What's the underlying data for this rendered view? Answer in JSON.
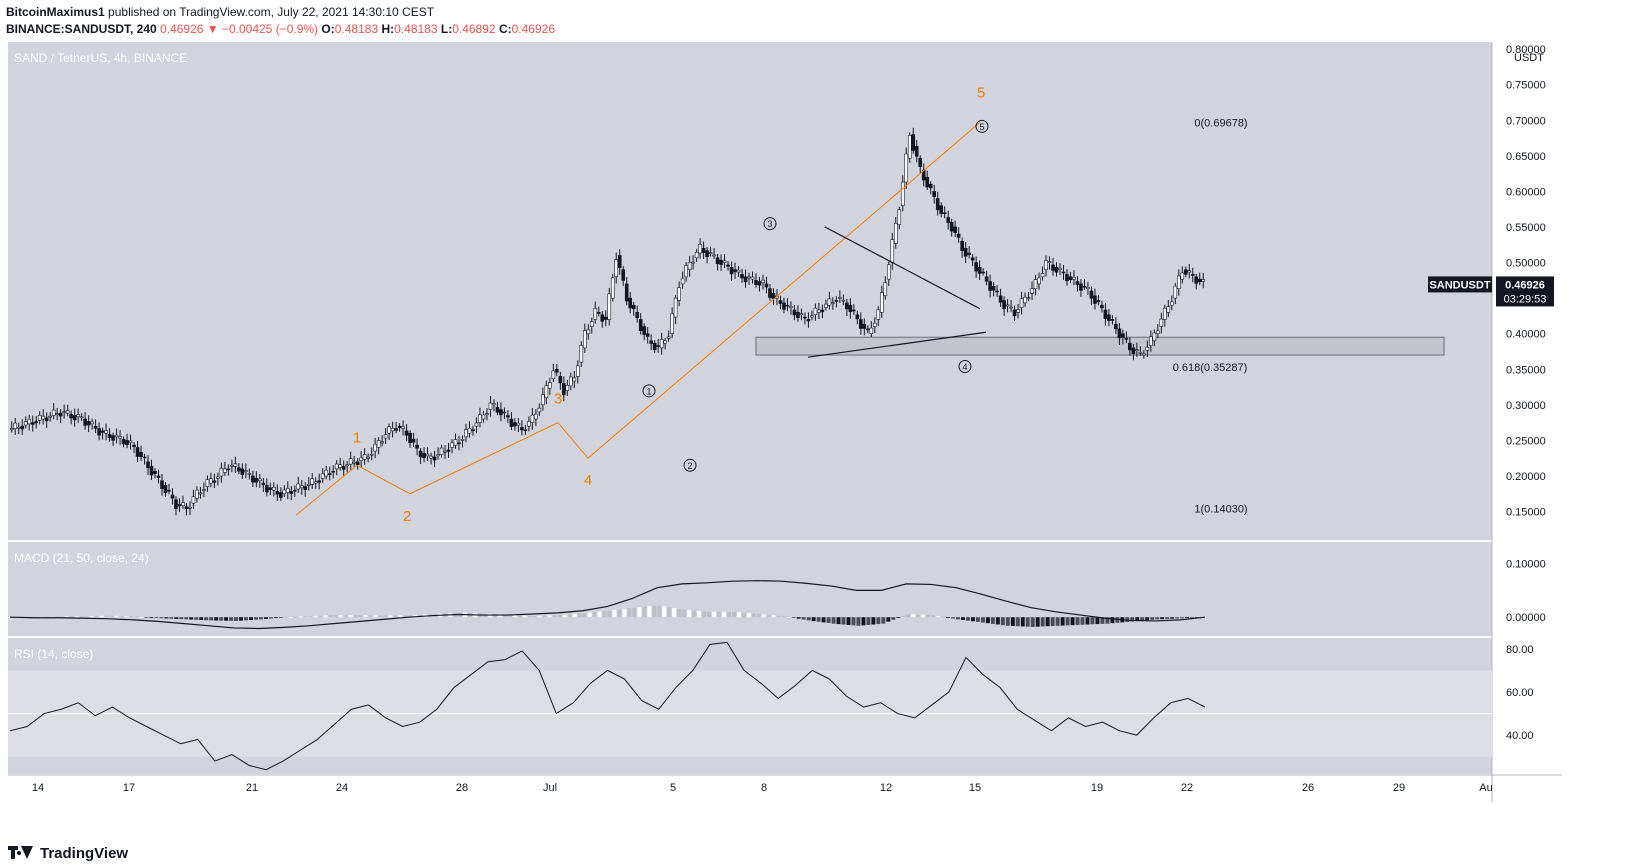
{
  "header": {
    "author": "BitcoinMaximus1",
    "published": "published on TradingView.com, July 22, 2021 14:30:10 CEST",
    "symbol_line": "BINANCE:SANDUSDT, 240",
    "change": "0.46926 ▼ −0.00425 (−0.9%)",
    "o_label": "O:",
    "o_value": "0.48183",
    "h_label": "H:",
    "h_value": "0.48183",
    "l_label": "L:",
    "l_value": "0.46892",
    "c_label": "C:",
    "c_value": "0.46926"
  },
  "footer": {
    "logo_text": "TradingView"
  },
  "colors": {
    "bg_panel": "#d1d4dc",
    "orange": "#f57c00",
    "bear": "#131722",
    "bull": "#ffffff",
    "price_tag": "#131722"
  },
  "chart_data": [
    {
      "type": "candlestick",
      "title": "SAND / TetherUS, 4h, BINANCE",
      "y_unit": "USDT",
      "ylim": [
        0.11,
        0.81
      ],
      "yticks": [
        "0.80000",
        "0.75000",
        "0.70000",
        "0.65000",
        "0.60000",
        "0.55000",
        "0.50000",
        "0.45000",
        "0.40000",
        "0.35000",
        "0.30000",
        "0.25000",
        "0.20000",
        "0.15000"
      ],
      "x_tick_labels": [
        "14",
        "17",
        "21",
        "24",
        "28",
        "Jul",
        "5",
        "8",
        "12",
        "15",
        "19",
        "22",
        "26",
        "29",
        "Au"
      ],
      "last_price": {
        "symbol": "SANDUSDT",
        "value": "0.46926",
        "countdown": "03:29:53"
      },
      "fib_levels": [
        {
          "label": "0(0.69678)",
          "value": 0.69678
        },
        {
          "label": "0.618(0.35287)",
          "value": 0.35287
        },
        {
          "label": "1(0.14030)",
          "value": 0.1403
        }
      ],
      "support_zone": [
        0.37,
        0.395
      ],
      "orange_waves": [
        {
          "label": "1",
          "value": 0.215
        },
        {
          "label": "2",
          "value": 0.175
        },
        {
          "label": "3",
          "value": 0.275
        },
        {
          "label": "4",
          "value": 0.225
        },
        {
          "label": "5",
          "value": 0.697
        }
      ],
      "circled_waves": [
        {
          "label": "1",
          "value": 0.3
        },
        {
          "label": "2",
          "value": 0.26
        },
        {
          "label": "3",
          "value": 0.535
        },
        {
          "label": "4",
          "value": 0.382
        },
        {
          "label": "5",
          "value": 0.697
        }
      ],
      "close_path": [
        0.265,
        0.27,
        0.275,
        0.28,
        0.285,
        0.29,
        0.285,
        0.28,
        0.27,
        0.26,
        0.255,
        0.25,
        0.24,
        0.22,
        0.2,
        0.18,
        0.16,
        0.155,
        0.175,
        0.19,
        0.2,
        0.215,
        0.21,
        0.2,
        0.19,
        0.18,
        0.175,
        0.18,
        0.185,
        0.19,
        0.2,
        0.21,
        0.215,
        0.22,
        0.225,
        0.24,
        0.26,
        0.27,
        0.26,
        0.235,
        0.225,
        0.23,
        0.24,
        0.25,
        0.265,
        0.28,
        0.3,
        0.29,
        0.275,
        0.265,
        0.28,
        0.31,
        0.35,
        0.32,
        0.34,
        0.4,
        0.43,
        0.42,
        0.51,
        0.45,
        0.42,
        0.39,
        0.38,
        0.4,
        0.47,
        0.5,
        0.52,
        0.51,
        0.5,
        0.49,
        0.48,
        0.475,
        0.47,
        0.45,
        0.44,
        0.43,
        0.42,
        0.43,
        0.44,
        0.45,
        0.44,
        0.42,
        0.4,
        0.43,
        0.5,
        0.58,
        0.68,
        0.63,
        0.6,
        0.57,
        0.55,
        0.52,
        0.5,
        0.48,
        0.46,
        0.44,
        0.43,
        0.45,
        0.47,
        0.5,
        0.49,
        0.48,
        0.47,
        0.46,
        0.44,
        0.42,
        0.4,
        0.38,
        0.37,
        0.39,
        0.42,
        0.45,
        0.49,
        0.48,
        0.47
      ]
    },
    {
      "type": "histogram",
      "title": "MACD (21, 50, close, 24)",
      "yticks": [
        "0.10000",
        "0.00000"
      ],
      "ylim": [
        -0.035,
        0.14
      ],
      "macd_line": [
        0,
        -0.001,
        -0.001,
        -0.002,
        -0.003,
        -0.005,
        -0.008,
        -0.012,
        -0.016,
        -0.02,
        -0.021,
        -0.019,
        -0.016,
        -0.012,
        -0.008,
        -0.004,
        0,
        0.003,
        0.005,
        0.004,
        0.004,
        0.006,
        0.008,
        0.012,
        0.02,
        0.035,
        0.055,
        0.062,
        0.064,
        0.067,
        0.068,
        0.067,
        0.063,
        0.058,
        0.05,
        0.05,
        0.062,
        0.061,
        0.055,
        0.043,
        0.03,
        0.018,
        0.01,
        0.004,
        -0.002,
        -0.006,
        -0.007,
        -0.005,
        0
      ],
      "histogram": [
        0,
        0,
        0.001,
        0.002,
        0.003,
        0.001,
        -0.002,
        -0.004,
        -0.006,
        -0.007,
        -0.004,
        0,
        0.002,
        0.004,
        0.004,
        0.003,
        0.004,
        0.006,
        0.009,
        0.007,
        0.004,
        0.002,
        0.004,
        0.008,
        0.012,
        0.018,
        0.022,
        0.014,
        0.01,
        0.01,
        0.006,
        0.002,
        -0.006,
        -0.012,
        -0.016,
        -0.012,
        0.006,
        0.004,
        -0.004,
        -0.01,
        -0.016,
        -0.018,
        -0.016,
        -0.014,
        -0.012,
        -0.008,
        -0.004,
        -0.002,
        0
      ]
    },
    {
      "type": "line",
      "title": "RSI (14, close)",
      "yticks": [
        "80.00",
        "60.00",
        "40.00"
      ],
      "ylim": [
        22,
        85
      ],
      "band": [
        30,
        70
      ],
      "midline": 50,
      "values": [
        42,
        44,
        50,
        52,
        55,
        49,
        53,
        48,
        44,
        40,
        36,
        38,
        28,
        31,
        26,
        24,
        28,
        33,
        38,
        45,
        52,
        54,
        48,
        44,
        46,
        52,
        62,
        68,
        74,
        75,
        79,
        70,
        50,
        55,
        64,
        70,
        66,
        56,
        52,
        62,
        70,
        82,
        83,
        70,
        64,
        57,
        63,
        70,
        66,
        58,
        53,
        55,
        50,
        48,
        54,
        60,
        76,
        68,
        62,
        52,
        47,
        42,
        48,
        44,
        46,
        42,
        40,
        48,
        55,
        57,
        53
      ]
    }
  ]
}
